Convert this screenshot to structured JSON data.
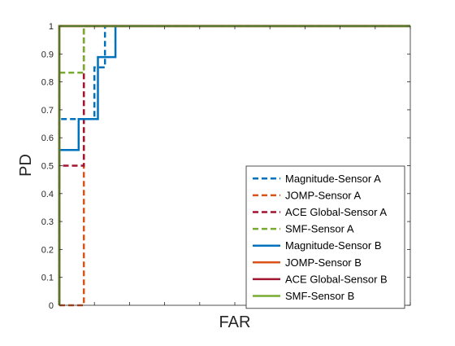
{
  "chart_data": {
    "type": "line",
    "xlabel": "FAR",
    "ylabel": "PD",
    "xlim": [
      0,
      1
    ],
    "ylim": [
      0,
      1
    ],
    "x_ticks_labeled": false,
    "y_ticks": [
      "0",
      "0.1",
      "0.2",
      "0.3",
      "0.4",
      "0.5",
      "0.6",
      "0.7",
      "0.8",
      "0.9",
      "1"
    ],
    "grid": false,
    "legend_position": "bottom-right",
    "series": [
      {
        "name": "Magnitude-Sensor A",
        "color": "#0072BD",
        "style": "dashed",
        "x": [
          0,
          0,
          0.05,
          0.05,
          0.1,
          0.1,
          0.13,
          0.13,
          1
        ],
        "y": [
          0,
          0.667,
          0.667,
          0.667,
          0.667,
          0.852,
          0.852,
          1,
          1
        ]
      },
      {
        "name": "JOMP-Sensor A",
        "color": "#D95319",
        "style": "dashed",
        "x": [
          0,
          0.07,
          0.07,
          1
        ],
        "y": [
          0,
          0,
          1,
          1
        ]
      },
      {
        "name": "ACE Global-Sensor A",
        "color": "#A2142F",
        "style": "dashed",
        "x": [
          0,
          0,
          0.07,
          0.07,
          1
        ],
        "y": [
          0,
          0.5,
          0.5,
          1,
          1
        ]
      },
      {
        "name": "SMF-Sensor A",
        "color": "#77AC30",
        "style": "dashed",
        "x": [
          0,
          0,
          0.07,
          0.07,
          1
        ],
        "y": [
          0,
          0.833,
          0.833,
          1,
          1
        ]
      },
      {
        "name": "Magnitude-Sensor B",
        "color": "#0072BD",
        "style": "solid",
        "x": [
          0,
          0,
          0.055,
          0.055,
          0.11,
          0.11,
          0.16,
          0.16,
          1
        ],
        "y": [
          0,
          0.556,
          0.556,
          0.667,
          0.667,
          0.889,
          0.889,
          1,
          1
        ]
      },
      {
        "name": "JOMP-Sensor B",
        "color": "#D95319",
        "style": "solid",
        "x": [
          0,
          0,
          1
        ],
        "y": [
          0,
          1,
          1
        ]
      },
      {
        "name": "ACE Global-Sensor B",
        "color": "#A2142F",
        "style": "solid",
        "x": [
          0,
          0,
          1
        ],
        "y": [
          0,
          1,
          1
        ]
      },
      {
        "name": "SMF-Sensor B",
        "color": "#77AC30",
        "style": "solid",
        "x": [
          0,
          0,
          1
        ],
        "y": [
          0,
          1,
          1
        ]
      }
    ]
  }
}
